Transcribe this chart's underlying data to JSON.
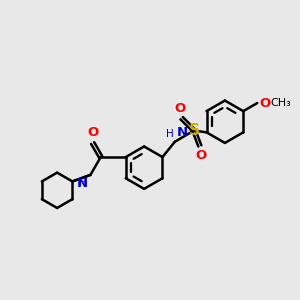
{
  "background_color": "#e8e8e8",
  "bond_color": "#000000",
  "nitrogen_color": "#0000cd",
  "oxygen_color": "#ff0000",
  "sulfur_color": "#ccaa00",
  "carbon_color": "#000000",
  "line_width": 1.8,
  "figsize": [
    3.0,
    3.0
  ],
  "dpi": 100,
  "xlim": [
    0,
    10
  ],
  "ylim": [
    0,
    10
  ]
}
